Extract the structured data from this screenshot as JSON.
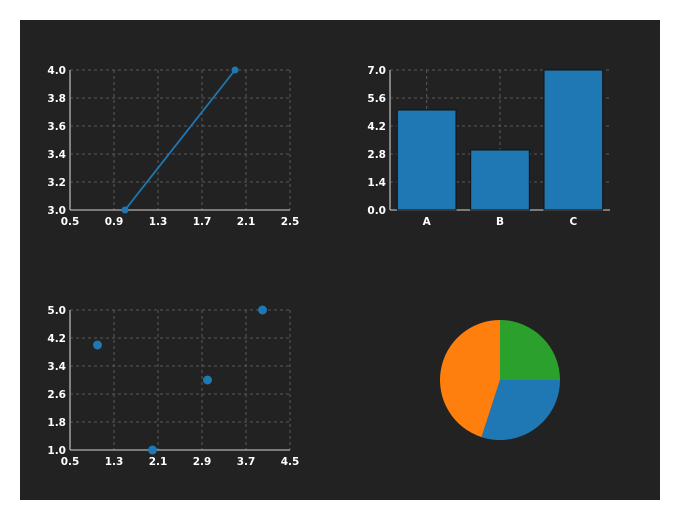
{
  "colors": {
    "background": "#222222",
    "series_blue": "#1f77b4",
    "pie_orange": "#ff7f0e",
    "pie_green": "#2ca02c"
  },
  "chart_data": [
    {
      "type": "line",
      "x": [
        1.0,
        2.0
      ],
      "y": [
        3.0,
        4.0
      ],
      "xlim": [
        0.5,
        2.5
      ],
      "ylim": [
        3.0,
        4.0
      ],
      "xticks": [
        "0.5",
        "0.9",
        "1.3",
        "1.7",
        "2.1",
        "2.5"
      ],
      "yticks": [
        "3.0",
        "3.2",
        "3.4",
        "3.6",
        "3.8",
        "4.0"
      ],
      "grid": true
    },
    {
      "type": "bar",
      "categories": [
        "A",
        "B",
        "C"
      ],
      "values": [
        5,
        3,
        7
      ],
      "ylim": [
        0,
        7
      ],
      "yticks": [
        "0.0",
        "1.4",
        "2.8",
        "4.2",
        "5.6",
        "7.0"
      ],
      "grid": true
    },
    {
      "type": "scatter",
      "x": [
        1.0,
        2.0,
        3.0,
        4.0
      ],
      "y": [
        4.0,
        1.0,
        3.0,
        5.0
      ],
      "xlim": [
        0.5,
        4.5
      ],
      "ylim": [
        1.0,
        5.0
      ],
      "xticks": [
        "0.5",
        "1.3",
        "2.1",
        "2.9",
        "3.7",
        "4.5"
      ],
      "yticks": [
        "1.0",
        "1.8",
        "2.6",
        "3.4",
        "4.2",
        "5.0"
      ],
      "grid": true
    },
    {
      "type": "pie",
      "values": [
        25,
        30,
        45
      ],
      "colors": [
        "#2ca02c",
        "#1f77b4",
        "#ff7f0e"
      ]
    }
  ]
}
